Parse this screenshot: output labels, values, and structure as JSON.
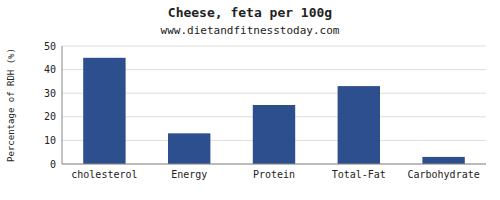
{
  "chart_data": {
    "type": "bar",
    "title": "Cheese, feta per 100g",
    "subtitle": "www.dietandfitnesstoday.com",
    "categories": [
      "cholesterol",
      "Energy",
      "Protein",
      "Total-Fat",
      "Carbohydrate"
    ],
    "values": [
      45,
      13,
      25,
      33,
      3
    ],
    "color": "#2d4f8e",
    "ylabel": "Percentage of RDH (%)",
    "ylim": [
      0,
      50
    ],
    "yticks": [
      0,
      10,
      20,
      30,
      40,
      50
    ],
    "grid": true
  }
}
